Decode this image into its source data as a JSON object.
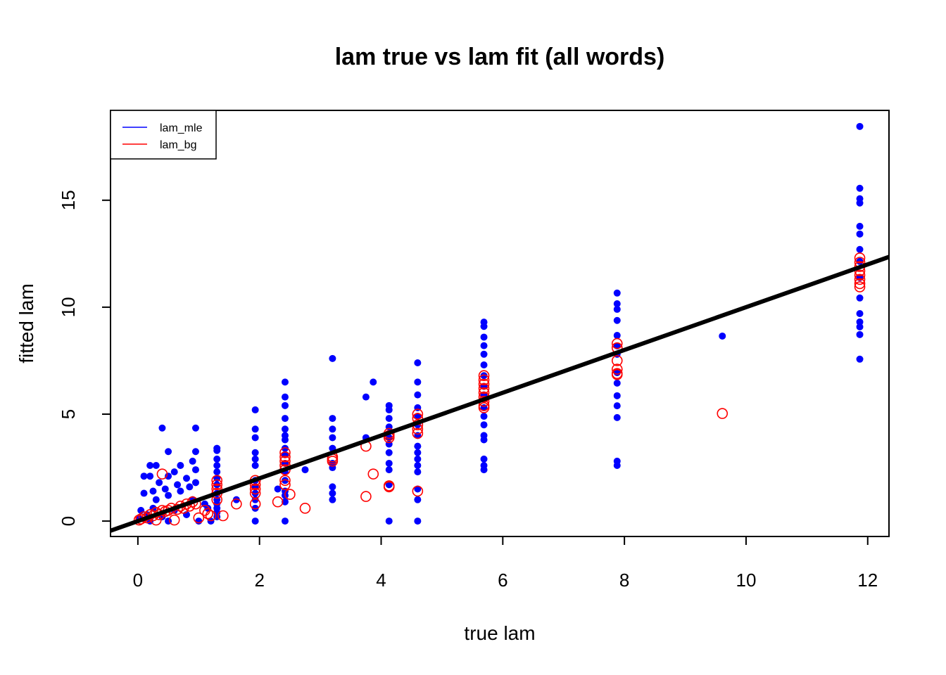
{
  "chart_data": {
    "type": "scatter",
    "title": "lam true vs lam fit (all words)",
    "x_label": "true lam",
    "y_label": "fitted lam",
    "xlim": [
      -0.45,
      12.35
    ],
    "ylim": [
      -0.72,
      19.2
    ],
    "xticks": [
      0,
      2,
      4,
      6,
      8,
      10,
      12
    ],
    "yticks": [
      0,
      5,
      10,
      15
    ],
    "legend": "topleft",
    "abline": {
      "intercept": 0,
      "slope": 1,
      "color": "#000000"
    },
    "series": [
      {
        "name": "lam_mle",
        "color": "#0000ff",
        "marker": "filled",
        "x": [
          11.87,
          11.87,
          11.87,
          11.87,
          11.87,
          11.87,
          11.87,
          11.87,
          11.87,
          11.87,
          11.87,
          11.87,
          11.87,
          11.87,
          11.87,
          9.61,
          7.88,
          7.88,
          7.88,
          7.88,
          7.88,
          7.88,
          7.88,
          7.88,
          7.88,
          7.88,
          7.88,
          7.88,
          7.88,
          7.88,
          5.69,
          5.69,
          5.69,
          5.69,
          5.69,
          5.69,
          5.69,
          5.69,
          5.69,
          5.69,
          5.69,
          5.69,
          5.69,
          5.69,
          5.69,
          5.69,
          5.69,
          4.6,
          4.6,
          4.6,
          4.6,
          4.6,
          4.6,
          4.6,
          4.6,
          4.6,
          4.6,
          4.6,
          4.6,
          4.6,
          4.6,
          4.6,
          4.13,
          4.13,
          4.13,
          4.13,
          4.13,
          4.13,
          4.13,
          4.13,
          4.13,
          4.13,
          4.13,
          3.87,
          3.75,
          3.75,
          3.2,
          3.2,
          3.2,
          3.2,
          3.2,
          3.2,
          3.2,
          3.2,
          3.2,
          3.2,
          2.75,
          2.42,
          2.42,
          2.42,
          2.42,
          2.42,
          2.42,
          2.42,
          2.42,
          2.42,
          2.42,
          2.42,
          2.42,
          2.42,
          2.42,
          2.42,
          2.42,
          2.3,
          1.93,
          1.93,
          1.93,
          1.93,
          1.93,
          1.93,
          1.93,
          1.93,
          1.93,
          1.93,
          1.93,
          1.93,
          1.62,
          1.3,
          1.3,
          1.3,
          1.3,
          1.3,
          1.3,
          1.3,
          1.3,
          1.3,
          1.3,
          1.3,
          1.3,
          1.3,
          0.4,
          0.95,
          0.5,
          0.95,
          0.1,
          0.2,
          0.3,
          0.2,
          0.35,
          0.5,
          0.6,
          0.7,
          0.8,
          0.9,
          0.95,
          0.95,
          0.1,
          0.3,
          0.5,
          0.7,
          0.9,
          1.1,
          1.15,
          0.05,
          0.15,
          0.25,
          0.4,
          0.6,
          0.8,
          1.0,
          1.2,
          0.2,
          0.5,
          0.02,
          0.85,
          0.65,
          0.45,
          0.25
        ],
        "values": [
          18.45,
          15.56,
          15.07,
          14.87,
          13.78,
          13.42,
          12.7,
          12.14,
          11.38,
          10.43,
          9.7,
          9.31,
          9.08,
          8.72,
          7.57,
          8.65,
          10.66,
          10.16,
          9.9,
          9.38,
          8.68,
          8.19,
          7.8,
          6.94,
          6.45,
          5.86,
          5.39,
          4.84,
          2.8,
          2.6,
          9.3,
          9.1,
          8.6,
          8.2,
          7.8,
          7.3,
          6.8,
          6.3,
          5.9,
          5.3,
          4.9,
          4.5,
          4.0,
          3.8,
          2.9,
          2.6,
          2.4,
          7.4,
          6.5,
          5.9,
          5.3,
          4.9,
          4.5,
          4.0,
          3.5,
          3.2,
          2.9,
          2.6,
          2.3,
          1.5,
          1.0,
          0,
          5.4,
          5.2,
          4.8,
          4.4,
          3.9,
          3.6,
          3.2,
          2.7,
          2.4,
          1.7,
          0,
          6.5,
          5.8,
          3.9,
          7.6,
          4.8,
          4.3,
          3.9,
          3.4,
          2.7,
          2.5,
          1.6,
          1.3,
          1.0,
          2.4,
          6.5,
          5.8,
          5.4,
          4.8,
          4.3,
          4.0,
          3.8,
          3.4,
          3.1,
          2.7,
          2.3,
          1.9,
          1.4,
          1.2,
          0.9,
          0,
          1.5,
          5.2,
          4.3,
          3.9,
          3.2,
          2.9,
          2.6,
          1.9,
          1.6,
          1.3,
          1.0,
          0.6,
          0,
          1.0,
          3.4,
          3.3,
          2.9,
          2.6,
          2.3,
          2.0,
          1.7,
          1.3,
          1.0,
          0.8,
          0.6,
          0.4,
          0.2,
          4.35,
          4.35,
          3.25,
          3.25,
          2.1,
          2.6,
          2.6,
          2.1,
          1.8,
          2.1,
          2.3,
          2.6,
          2.0,
          2.8,
          2.4,
          1.8,
          1.3,
          1.0,
          1.2,
          1.4,
          1.0,
          0.8,
          0.6,
          0.5,
          0.3,
          0.6,
          0.2,
          0.5,
          0.3,
          0.0,
          0.0,
          0.0,
          0.0,
          0.1,
          1.6,
          1.7,
          1.5,
          1.4
        ]
      },
      {
        "name": "lam_bg",
        "color": "#ff0000",
        "marker": "open",
        "x": [
          11.87,
          11.87,
          11.87,
          11.87,
          11.87,
          11.87,
          11.87,
          11.87,
          9.61,
          7.88,
          7.88,
          7.88,
          7.88,
          7.88,
          7.88,
          5.69,
          5.69,
          5.69,
          5.69,
          5.69,
          5.69,
          5.69,
          5.69,
          5.69,
          4.6,
          4.6,
          4.6,
          4.6,
          4.6,
          4.6,
          4.13,
          4.13,
          4.13,
          4.13,
          4.13,
          3.87,
          3.75,
          3.75,
          3.2,
          3.2,
          3.2,
          2.75,
          2.42,
          2.42,
          2.42,
          2.42,
          2.42,
          2.42,
          2.42,
          2.5,
          2.3,
          1.93,
          1.93,
          1.93,
          1.93,
          1.93,
          1.62,
          1.3,
          1.3,
          1.3,
          1.3,
          1.3,
          1.4,
          0.05,
          0.1,
          0.15,
          0.2,
          0.25,
          0.3,
          0.35,
          0.4,
          0.4,
          0.45,
          0.5,
          0.55,
          0.6,
          0.65,
          0.7,
          0.75,
          0.8,
          0.85,
          0.9,
          0.95,
          1.0,
          1.1,
          1.15,
          1.2,
          0.02,
          0.3
        ],
        "values": [
          12.3,
          12.1,
          11.9,
          11.7,
          11.5,
          11.3,
          11.1,
          10.95,
          5.03,
          8.3,
          8.1,
          7.5,
          7.1,
          6.9,
          6.85,
          6.8,
          6.6,
          6.4,
          6.2,
          6.0,
          5.8,
          5.6,
          5.4,
          5.3,
          5.0,
          4.8,
          4.5,
          4.3,
          4.1,
          1.4,
          4.1,
          4.0,
          3.9,
          1.6,
          1.65,
          2.2,
          3.5,
          1.15,
          3.0,
          2.9,
          2.8,
          0.6,
          3.2,
          3.0,
          2.8,
          2.6,
          2.4,
          1.9,
          1.7,
          1.25,
          0.9,
          1.9,
          1.7,
          1.5,
          1.3,
          0.8,
          0.8,
          1.9,
          1.7,
          1.5,
          1.3,
          1.0,
          0.25,
          0.1,
          0.2,
          0.15,
          0.3,
          0.25,
          0.4,
          0.3,
          2.2,
          0.5,
          0.45,
          0.5,
          0.6,
          0.05,
          0.55,
          0.7,
          0.6,
          0.8,
          0.7,
          0.9,
          0.8,
          0.15,
          0.5,
          0.35,
          0.25,
          0.05,
          0.05
        ]
      }
    ]
  }
}
